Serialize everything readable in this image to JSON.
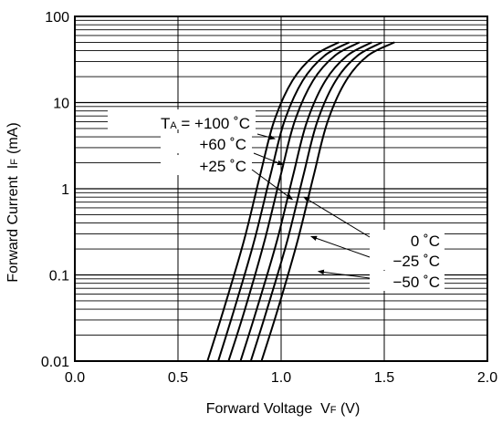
{
  "chart_data": {
    "type": "line",
    "xlabel_main": "Forward Voltage",
    "xlabel_sym": "V",
    "xlabel_sub": "F",
    "xlabel_unit": "(V)",
    "ylabel_main": "Forward Current",
    "ylabel_sym": "I",
    "ylabel_sub": "F",
    "ylabel_unit": "(mA)",
    "xlim": [
      0.0,
      2.0
    ],
    "ylim": [
      0.01,
      100
    ],
    "yscale": "log",
    "grid": true,
    "x_ticks": [
      "0.0",
      "0.5",
      "1.0",
      "1.5",
      "2.0"
    ],
    "y_ticks": [
      "0.01",
      "0.1",
      "1",
      "10",
      "100"
    ],
    "series": [
      {
        "name": "+100 ˚C",
        "x": [
          0.643,
          0.722,
          0.82,
          0.9,
          0.965,
          1.055,
          1.16,
          1.28
        ],
        "y": [
          0.01,
          0.04,
          0.25,
          1.5,
          6,
          18,
          35,
          50
        ]
      },
      {
        "name": "+60 ˚C",
        "x": [
          0.695,
          0.773,
          0.87,
          0.95,
          1.015,
          1.105,
          1.21,
          1.33
        ],
        "y": [
          0.01,
          0.04,
          0.25,
          1.5,
          6,
          18,
          35,
          50
        ]
      },
      {
        "name": "+25 ˚C",
        "x": [
          0.745,
          0.825,
          0.92,
          1.0,
          1.065,
          1.155,
          1.26,
          1.38
        ],
        "y": [
          0.01,
          0.04,
          0.25,
          1.5,
          6,
          18,
          35,
          50
        ]
      },
      {
        "name": "0 ˚C",
        "x": [
          0.853,
          0.932,
          1.03,
          1.11,
          1.175,
          1.265,
          1.37,
          1.49
        ],
        "y": [
          0.01,
          0.04,
          0.25,
          1.5,
          6,
          18,
          35,
          50
        ]
      },
      {
        "name": "−25 ˚C",
        "x": [
          0.803,
          0.882,
          0.98,
          1.06,
          1.125,
          1.215,
          1.32,
          1.44
        ],
        "y": [
          0.01,
          0.04,
          0.25,
          1.5,
          6,
          18,
          35,
          50
        ]
      },
      {
        "name": "−50 ˚C",
        "x": [
          0.905,
          0.984,
          1.08,
          1.16,
          1.225,
          1.315,
          1.42,
          1.55
        ],
        "y": [
          0.01,
          0.04,
          0.25,
          1.5,
          6,
          18,
          35,
          50
        ]
      }
    ],
    "annotations": {
      "prefix": "T",
      "prefix_sub": "A",
      "prefix_eq": " = ",
      "labels": [
        "+100 ˚C",
        "+60 ˚C",
        "+25 ˚C",
        "0 ˚C",
        "−25 ˚C",
        "−50 ˚C"
      ],
      "arrow_targets": [
        {
          "x": 0.97,
          "y": 3.8
        },
        {
          "x": 1.01,
          "y": 1.9
        },
        {
          "x": 1.055,
          "y": 0.75
        },
        {
          "x": 1.11,
          "y": 0.8
        },
        {
          "x": 1.145,
          "y": 0.28
        },
        {
          "x": 1.18,
          "y": 0.11
        }
      ]
    }
  }
}
